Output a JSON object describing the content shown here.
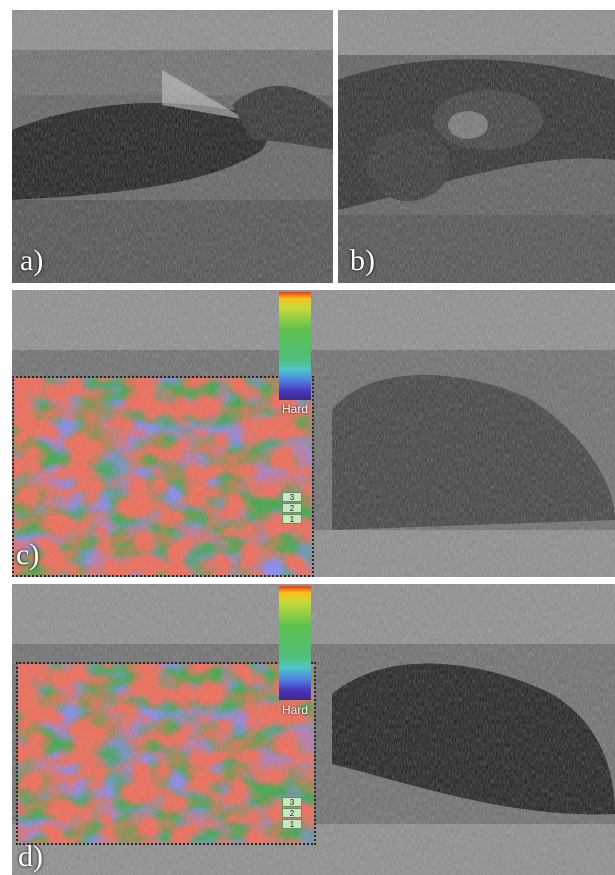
{
  "panels": {
    "a": {
      "label": "a)"
    },
    "b": {
      "label": "b)"
    },
    "c": {
      "label": "c)",
      "hard_label": "Hard",
      "scale": [
        "3",
        "2",
        "1"
      ]
    },
    "d": {
      "label": "d)",
      "hard_label": "Hard",
      "scale": [
        "3",
        "2",
        "1"
      ]
    }
  },
  "colors": {
    "background": "#ffffff",
    "ultrasound_dark": "#151515",
    "ultrasound_mid": "#6e6e6e",
    "elasto_blue": "#3d3fd0",
    "elasto_green": "#3fa84a",
    "elasto_red": "#c03a2a"
  }
}
